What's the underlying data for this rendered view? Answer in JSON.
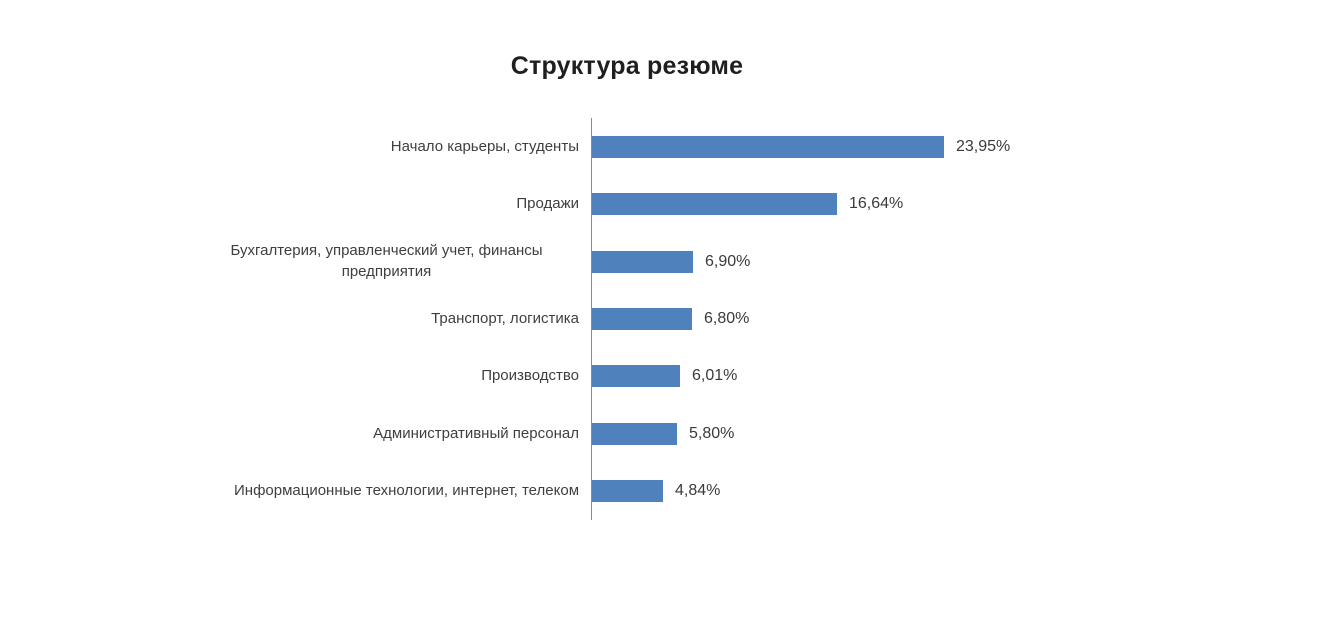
{
  "chart": {
    "title": "Структура резюме"
  },
  "chart_data": {
    "type": "bar",
    "orientation": "horizontal",
    "title": "Структура резюме",
    "xlabel": "",
    "ylabel": "",
    "categories": [
      "Начало карьеры, студенты",
      "Продажи",
      "Бухгалтерия, управленческий учет, финансы предприятия",
      "Транспорт, логистика",
      "Производство",
      "Административный персонал",
      "Информационные технологии, интернет, телеком"
    ],
    "values": [
      23.95,
      16.64,
      6.9,
      6.8,
      6.01,
      5.8,
      4.84
    ],
    "value_labels": [
      "23,95%",
      "16,64%",
      "6,90%",
      "6,80%",
      "6,01%",
      "5,80%",
      "4,84%"
    ],
    "xlim": [
      0,
      28
    ],
    "grid": false,
    "legend": false,
    "bar_color": "#4F81BD",
    "axis_line_color": "#8C8C8C",
    "label_color": "#3f3f3f"
  }
}
